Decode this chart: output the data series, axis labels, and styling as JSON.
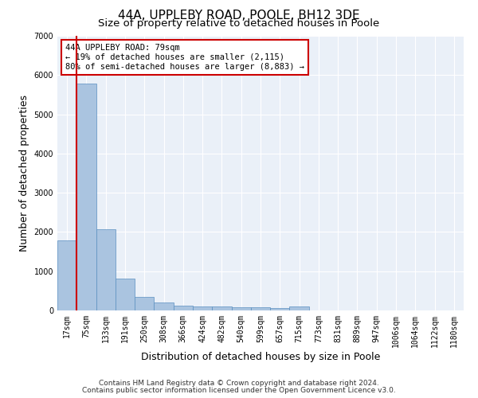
{
  "title": "44A, UPPLEBY ROAD, POOLE, BH12 3DE",
  "subtitle": "Size of property relative to detached houses in Poole",
  "xlabel": "Distribution of detached houses by size in Poole",
  "ylabel": "Number of detached properties",
  "bar_labels": [
    "17sqm",
    "75sqm",
    "133sqm",
    "191sqm",
    "250sqm",
    "308sqm",
    "366sqm",
    "424sqm",
    "482sqm",
    "540sqm",
    "599sqm",
    "657sqm",
    "715sqm",
    "773sqm",
    "831sqm",
    "889sqm",
    "947sqm",
    "1006sqm",
    "1064sqm",
    "1122sqm",
    "1180sqm"
  ],
  "bar_values": [
    1780,
    5780,
    2060,
    820,
    335,
    195,
    115,
    110,
    100,
    80,
    75,
    65,
    110,
    0,
    0,
    0,
    0,
    0,
    0,
    0,
    0
  ],
  "bar_color": "#aac4e0",
  "bar_edge_color": "#5a8fc0",
  "highlight_bar_index": 1,
  "highlight_color": "#cc0000",
  "annotation_text": "44A UPPLEBY ROAD: 79sqm\n← 19% of detached houses are smaller (2,115)\n80% of semi-detached houses are larger (8,883) →",
  "annotation_box_color": "#ffffff",
  "annotation_box_edge": "#cc0000",
  "ylim": [
    0,
    7000
  ],
  "yticks": [
    0,
    1000,
    2000,
    3000,
    4000,
    5000,
    6000,
    7000
  ],
  "background_color": "#ffffff",
  "plot_bg_color": "#eaf0f8",
  "grid_color": "#ffffff",
  "footnote1": "Contains HM Land Registry data © Crown copyright and database right 2024.",
  "footnote2": "Contains public sector information licensed under the Open Government Licence v3.0.",
  "title_fontsize": 11,
  "subtitle_fontsize": 9.5,
  "axis_label_fontsize": 9,
  "tick_fontsize": 7,
  "annotation_fontsize": 7.5,
  "footnote_fontsize": 6.5
}
